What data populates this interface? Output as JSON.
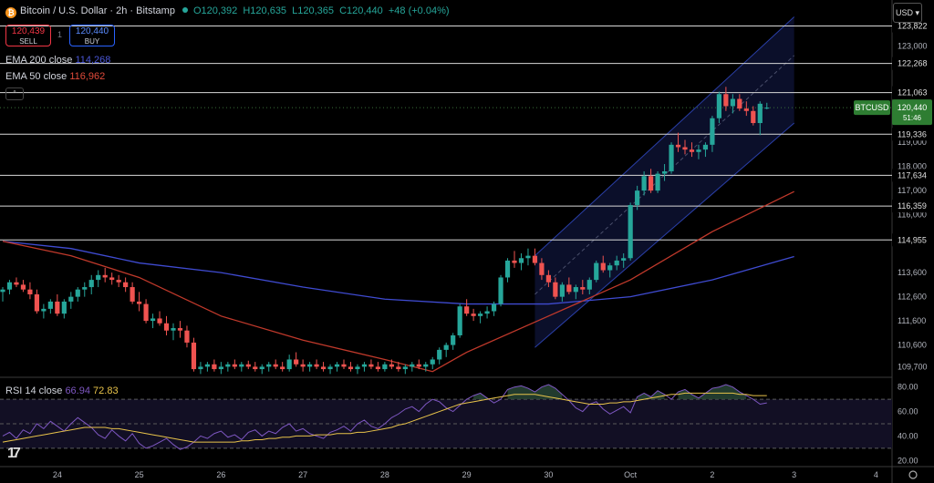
{
  "header": {
    "title": "Bitcoin / U.S. Dollar · 2h · Bitstamp",
    "open": "O120,392",
    "high": "H120,635",
    "low": "L120,365",
    "close": "C120,440",
    "change": "+48 (+0.04%)"
  },
  "trade": {
    "sell_price": "120,439",
    "sell_label": "SELL",
    "spread": "1",
    "buy_price": "120,440",
    "buy_label": "BUY"
  },
  "indicators": {
    "ema200_label": "EMA 200 close",
    "ema200_value": "114,268",
    "ema50_label": "EMA 50 close",
    "ema50_value": "116,962",
    "rsi_label": "RSI 14 close",
    "rsi_value": "66.94",
    "rsi_ma_value": "72.83"
  },
  "currency": "USD",
  "ticker": {
    "symbol": "BTCUSD",
    "price": "120,440",
    "countdown": "51:46"
  },
  "colors": {
    "up": "#26a69a",
    "down": "#ef5350",
    "ema200": "#3f4bd1",
    "ema50": "#c0392b",
    "rsi": "#7e57c2",
    "rsi_ma": "#e8c34a",
    "channel": "#2a3fa8"
  },
  "chart_data": [
    {
      "type": "candlestick",
      "title": "Bitcoin / U.S. Dollar · 2h · Bitstamp",
      "ylim": [
        109300,
        124900
      ],
      "y_ticks": [
        109700,
        110600,
        111600,
        112600,
        113600,
        116000,
        117000,
        118000,
        119000,
        123000
      ],
      "y_tick_labels": [
        "109,700",
        "110,600",
        "111,600",
        "112,600",
        "113,600",
        "116,000",
        "117,000",
        "118,000",
        "119,000",
        "123,000"
      ],
      "x_ticks": [
        {
          "x": 8,
          "label": "24"
        },
        {
          "x": 20,
          "label": "25"
        },
        {
          "x": 32,
          "label": "26"
        },
        {
          "x": 44,
          "label": "27"
        },
        {
          "x": 56,
          "label": "28"
        },
        {
          "x": 68,
          "label": "29"
        },
        {
          "x": 80,
          "label": "30"
        },
        {
          "x": 92,
          "label": "Oct"
        },
        {
          "x": 104,
          "label": "2"
        },
        {
          "x": 116,
          "label": "3"
        },
        {
          "x": 128,
          "label": "4"
        }
      ],
      "horizontal_levels": [
        123822,
        122268,
        121063,
        119336,
        117634,
        116359,
        114955
      ],
      "horizontal_level_labels": [
        "123,822",
        "122,268",
        "121,063",
        "119,336",
        "117,634",
        "116,359",
        "114,955"
      ],
      "last_price": 120440,
      "ohlc": [
        [
          112800,
          113000,
          112400,
          112900
        ],
        [
          112900,
          113300,
          112700,
          113200
        ],
        [
          113200,
          113400,
          113000,
          113100
        ],
        [
          113100,
          113300,
          112800,
          112900
        ],
        [
          112900,
          113200,
          112500,
          112700
        ],
        [
          112700,
          112900,
          111900,
          112000
        ],
        [
          112000,
          112300,
          111700,
          112100
        ],
        [
          112100,
          112500,
          111900,
          112400
        ],
        [
          112400,
          112700,
          111800,
          111900
        ],
        [
          111900,
          112500,
          111700,
          112400
        ],
        [
          112400,
          112800,
          112100,
          112600
        ],
        [
          112600,
          113000,
          112400,
          112900
        ],
        [
          112900,
          113200,
          112600,
          113000
        ],
        [
          113000,
          113500,
          112700,
          113300
        ],
        [
          113300,
          113700,
          113000,
          113500
        ],
        [
          113500,
          113800,
          113200,
          113400
        ],
        [
          113400,
          113600,
          113100,
          113300
        ],
        [
          113300,
          113500,
          113000,
          113200
        ],
        [
          113200,
          113400,
          112800,
          113000
        ],
        [
          113000,
          113200,
          112300,
          112400
        ],
        [
          112400,
          112800,
          112000,
          112300
        ],
        [
          112300,
          112500,
          111500,
          111600
        ],
        [
          111600,
          111900,
          111300,
          111700
        ],
        [
          111700,
          112000,
          111400,
          111500
        ],
        [
          111500,
          111800,
          111000,
          111200
        ],
        [
          111200,
          111500,
          110800,
          111300
        ],
        [
          111300,
          111600,
          110900,
          111200
        ],
        [
          111200,
          111400,
          110500,
          110700
        ],
        [
          110700,
          110900,
          109500,
          109600
        ],
        [
          109600,
          109900,
          109400,
          109700
        ],
        [
          109700,
          109900,
          109500,
          109800
        ],
        [
          109800,
          110000,
          109500,
          109600
        ],
        [
          109600,
          109900,
          109400,
          109700
        ],
        [
          109700,
          109900,
          109500,
          109800
        ],
        [
          109800,
          110000,
          109600,
          109700
        ],
        [
          109700,
          109900,
          109500,
          109800
        ],
        [
          109800,
          109950,
          109600,
          109700
        ],
        [
          109700,
          109900,
          109500,
          109600
        ],
        [
          109600,
          109800,
          109400,
          109700
        ],
        [
          109700,
          109900,
          109500,
          109800
        ],
        [
          109800,
          110000,
          109600,
          109700
        ],
        [
          109700,
          109900,
          109500,
          109600
        ],
        [
          109600,
          110200,
          109500,
          110000
        ],
        [
          110000,
          110300,
          109700,
          109800
        ],
        [
          109800,
          110000,
          109500,
          109700
        ],
        [
          109700,
          109900,
          109500,
          109800
        ],
        [
          109800,
          110000,
          109600,
          109700
        ],
        [
          109700,
          109900,
          109500,
          109600
        ],
        [
          109600,
          109800,
          109400,
          109700
        ],
        [
          109700,
          109900,
          109500,
          109800
        ],
        [
          109800,
          110000,
          109600,
          109700
        ],
        [
          109700,
          109900,
          109500,
          109600
        ],
        [
          109600,
          109800,
          109400,
          109700
        ],
        [
          109700,
          109900,
          109500,
          109800
        ],
        [
          109800,
          110000,
          109600,
          109700
        ],
        [
          109700,
          109900,
          109500,
          109600
        ],
        [
          109600,
          109900,
          109500,
          109800
        ],
        [
          109800,
          110000,
          109600,
          109700
        ],
        [
          109700,
          109900,
          109500,
          109600
        ],
        [
          109600,
          109800,
          109400,
          109700
        ],
        [
          109700,
          109900,
          109500,
          109800
        ],
        [
          109800,
          110000,
          109600,
          109700
        ],
        [
          109700,
          109900,
          109500,
          109800
        ],
        [
          109800,
          110100,
          109600,
          110000
        ],
        [
          110000,
          110500,
          109800,
          110400
        ],
        [
          110400,
          110700,
          110100,
          110600
        ],
        [
          110600,
          111100,
          110400,
          111000
        ],
        [
          111000,
          112300,
          110900,
          112200
        ],
        [
          112200,
          112500,
          111800,
          111900
        ],
        [
          111900,
          112100,
          111600,
          111800
        ],
        [
          111800,
          112000,
          111500,
          111900
        ],
        [
          111900,
          112200,
          111700,
          112000
        ],
        [
          112000,
          112400,
          111800,
          112300
        ],
        [
          112300,
          113500,
          112200,
          113400
        ],
        [
          113400,
          114200,
          113200,
          114100
        ],
        [
          114100,
          114500,
          113800,
          114000
        ],
        [
          114000,
          114400,
          113700,
          114200
        ],
        [
          114200,
          114600,
          113900,
          114300
        ],
        [
          114300,
          114600,
          113900,
          114000
        ],
        [
          114000,
          114200,
          113300,
          113500
        ],
        [
          113500,
          113700,
          113000,
          113200
        ],
        [
          113200,
          113400,
          112500,
          112600
        ],
        [
          112600,
          113200,
          112400,
          113100
        ],
        [
          113100,
          113400,
          112700,
          112800
        ],
        [
          112800,
          113100,
          112500,
          113000
        ],
        [
          113000,
          113300,
          112700,
          112900
        ],
        [
          112900,
          113400,
          112700,
          113300
        ],
        [
          113300,
          114100,
          113200,
          114000
        ],
        [
          114000,
          114300,
          113600,
          113700
        ],
        [
          113700,
          114000,
          113400,
          113900
        ],
        [
          113900,
          114300,
          113700,
          114100
        ],
        [
          114100,
          114400,
          113800,
          114200
        ],
        [
          114200,
          116500,
          114100,
          116400
        ],
        [
          116400,
          117200,
          116200,
          117000
        ],
        [
          117000,
          117800,
          116800,
          117600
        ],
        [
          117600,
          117900,
          116900,
          117000
        ],
        [
          117000,
          117800,
          116900,
          117700
        ],
        [
          117700,
          118100,
          117400,
          117800
        ],
        [
          117800,
          119000,
          117700,
          118900
        ],
        [
          118900,
          119400,
          118600,
          118800
        ],
        [
          118800,
          119100,
          118500,
          118700
        ],
        [
          118700,
          119000,
          118400,
          118600
        ],
        [
          118600,
          118900,
          118300,
          118700
        ],
        [
          118700,
          119000,
          118400,
          118900
        ],
        [
          118900,
          120100,
          118600,
          120000
        ],
        [
          120000,
          121100,
          119800,
          121000
        ],
        [
          121000,
          121300,
          120300,
          120500
        ],
        [
          120500,
          121000,
          120200,
          120800
        ],
        [
          120800,
          121000,
          120300,
          120400
        ],
        [
          120400,
          120700,
          120100,
          120300
        ],
        [
          120300,
          120500,
          119700,
          119800
        ],
        [
          119800,
          120700,
          119300,
          120600
        ],
        [
          120400,
          120640,
          120370,
          120440
        ]
      ],
      "ema50": [
        [
          0,
          114900
        ],
        [
          10,
          114300
        ],
        [
          20,
          113400
        ],
        [
          32,
          111800
        ],
        [
          44,
          110800
        ],
        [
          56,
          110000
        ],
        [
          63,
          109500
        ],
        [
          68,
          110300
        ],
        [
          80,
          111800
        ],
        [
          92,
          113300
        ],
        [
          104,
          115300
        ],
        [
          116,
          116962
        ]
      ],
      "ema200": [
        [
          0,
          114900
        ],
        [
          10,
          114600
        ],
        [
          20,
          114000
        ],
        [
          32,
          113600
        ],
        [
          44,
          113000
        ],
        [
          56,
          112500
        ],
        [
          68,
          112300
        ],
        [
          80,
          112300
        ],
        [
          92,
          112600
        ],
        [
          104,
          113300
        ],
        [
          116,
          114268
        ]
      ],
      "channel": {
        "upper": [
          [
            78,
            114300
          ],
          [
            116,
            124200
          ]
        ],
        "mid": [
          [
            78,
            112700
          ],
          [
            116,
            122600
          ]
        ],
        "lower": [
          [
            78,
            110500
          ],
          [
            116,
            119800
          ]
        ]
      }
    },
    {
      "type": "line",
      "title": "RSI 14 close",
      "ylim": [
        15,
        85
      ],
      "y_ticks": [
        20,
        40,
        60,
        80
      ],
      "y_tick_labels": [
        "20.00",
        "40.00",
        "60.00",
        "80.00"
      ],
      "bands": [
        30,
        50,
        70
      ],
      "series": [
        {
          "name": "RSI",
          "values": [
            40,
            43,
            38,
            45,
            42,
            50,
            46,
            52,
            48,
            44,
            50,
            55,
            51,
            47,
            41,
            38,
            45,
            40,
            36,
            42,
            34,
            30,
            32,
            35,
            38,
            33,
            29,
            31,
            35,
            40,
            38,
            42,
            44,
            39,
            41,
            37,
            43,
            45,
            40,
            44,
            42,
            47,
            50,
            44,
            46,
            42,
            40,
            38,
            43,
            45,
            48,
            44,
            50,
            53,
            48,
            46,
            50,
            55,
            58,
            62,
            64,
            60,
            66,
            70,
            68,
            63,
            60,
            65,
            70,
            73,
            75,
            71,
            67,
            70,
            78,
            80,
            81,
            79,
            76,
            80,
            82,
            79,
            74,
            69,
            63,
            60,
            66,
            68,
            62,
            58,
            61,
            64,
            59,
            72,
            75,
            72,
            77,
            74,
            70,
            76,
            78,
            74,
            71,
            75,
            79,
            80,
            82,
            80,
            76,
            73,
            70,
            66,
            67
          ]
        },
        {
          "name": "RSI MA",
          "values": [
            35,
            36,
            37,
            38,
            39,
            40,
            41,
            42,
            43,
            44,
            45,
            46,
            47,
            47,
            47,
            47,
            46,
            46,
            45,
            44,
            43,
            42,
            41,
            40,
            39,
            38,
            37,
            36,
            35,
            35,
            35,
            35,
            35,
            35,
            35,
            36,
            36,
            37,
            37,
            38,
            38,
            39,
            39,
            40,
            40,
            40,
            41,
            41,
            41,
            42,
            42,
            42,
            43,
            43,
            44,
            45,
            46,
            47,
            49,
            50,
            52,
            54,
            56,
            58,
            60,
            62,
            64,
            66,
            67,
            68,
            69,
            70,
            71,
            72,
            73,
            74,
            74,
            74,
            74,
            73,
            72,
            71,
            70,
            69,
            68,
            67,
            66,
            66,
            66,
            67,
            67,
            68,
            68,
            69,
            70,
            71,
            72,
            73,
            74,
            74,
            75,
            75,
            75,
            75,
            75,
            75,
            75,
            75,
            74,
            74,
            73,
            73,
            73
          ]
        }
      ]
    }
  ]
}
